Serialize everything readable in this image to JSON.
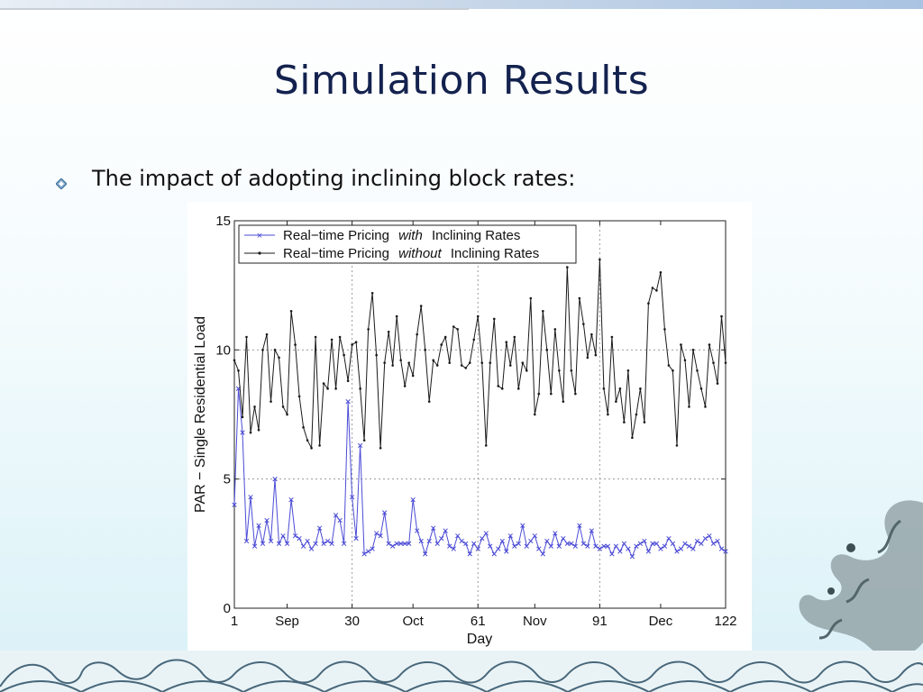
{
  "slide": {
    "title": "Simulation Results",
    "bullet": "The impact of adopting inclining block rates:"
  },
  "colors": {
    "title": "#13224e",
    "with_series": "#4b4bd6",
    "without_series": "#1a1a1a",
    "grid": "#9a9a9a"
  },
  "chart_data": {
    "type": "line",
    "title": "",
    "xlabel": "Day",
    "ylabel": "PAR − Single Residential Load",
    "xlim": [
      1,
      122
    ],
    "ylim": [
      0,
      15
    ],
    "y_ticks": [
      0,
      5,
      10,
      15
    ],
    "x_ticks": [
      {
        "value": 1,
        "label": "1"
      },
      {
        "value": 14,
        "label": "Sep"
      },
      {
        "value": 30,
        "label": "30"
      },
      {
        "value": 45,
        "label": "Oct"
      },
      {
        "value": 61,
        "label": "61"
      },
      {
        "value": 75,
        "label": "Nov"
      },
      {
        "value": 91,
        "label": "91"
      },
      {
        "value": 106,
        "label": "Dec"
      },
      {
        "value": 122,
        "label": "122"
      }
    ],
    "x_grid": [
      30,
      61,
      91
    ],
    "y_grid": [
      5,
      10
    ],
    "grid": true,
    "legend_position": "top-left",
    "series": [
      {
        "name": "Real−time Pricing with Inclining Rates",
        "name_plain": "Real−time Pricing",
        "name_italic": "with",
        "name_tail": "Inclining Rates",
        "marker": "x",
        "color": "#4b4bd6",
        "values": [
          4.0,
          8.5,
          6.8,
          2.6,
          4.3,
          2.4,
          3.2,
          2.5,
          3.4,
          2.6,
          5.0,
          2.5,
          2.8,
          2.5,
          4.2,
          2.8,
          2.7,
          2.4,
          2.6,
          2.3,
          2.5,
          3.1,
          2.5,
          2.6,
          2.5,
          3.6,
          3.4,
          2.5,
          8.0,
          4.3,
          2.7,
          6.3,
          2.1,
          2.2,
          2.3,
          2.9,
          2.8,
          3.7,
          2.5,
          2.4,
          2.5,
          2.5,
          2.5,
          2.5,
          4.2,
          3.0,
          2.6,
          2.1,
          2.6,
          3.1,
          2.5,
          2.7,
          3.0,
          2.4,
          2.3,
          2.8,
          2.6,
          2.5,
          2.1,
          2.5,
          2.3,
          2.7,
          2.9,
          2.4,
          2.1,
          2.3,
          2.6,
          2.2,
          2.8,
          2.4,
          2.5,
          3.2,
          2.4,
          2.6,
          2.8,
          2.3,
          2.1,
          2.6,
          2.4,
          2.9,
          2.4,
          2.7,
          2.5,
          2.5,
          2.4,
          3.2,
          2.5,
          2.4,
          3.0,
          2.4,
          2.3,
          2.4,
          2.4,
          2.1,
          2.4,
          2.2,
          2.5,
          2.3,
          2.0,
          2.4,
          2.5,
          2.6,
          2.2,
          2.5,
          2.5,
          2.3,
          2.4,
          2.7,
          2.5,
          2.2,
          2.3,
          2.5,
          2.4,
          2.3,
          2.6,
          2.5,
          2.7,
          2.8,
          2.5,
          2.6,
          2.3,
          2.2
        ]
      },
      {
        "name": "Real−time Pricing without Inclining Rates",
        "name_plain": "Real−time Pricing",
        "name_italic": "without",
        "name_tail": "Inclining Rates",
        "marker": "dot",
        "color": "#1a1a1a",
        "values": [
          9.6,
          9.2,
          7.4,
          10.5,
          6.8,
          7.8,
          6.9,
          10.0,
          10.6,
          8.0,
          10.0,
          9.7,
          7.8,
          7.5,
          11.5,
          10.2,
          8.2,
          7.0,
          6.5,
          6.2,
          10.5,
          6.3,
          8.7,
          8.5,
          10.4,
          8.5,
          10.5,
          9.8,
          8.8,
          10.2,
          10.3,
          8.5,
          6.5,
          10.8,
          12.2,
          9.8,
          6.2,
          9.5,
          10.7,
          9.4,
          11.3,
          9.6,
          8.6,
          9.5,
          9.0,
          10.6,
          11.7,
          10.0,
          8.0,
          9.6,
          9.4,
          10.2,
          10.5,
          9.5,
          10.9,
          10.8,
          9.4,
          9.3,
          9.5,
          10.4,
          11.3,
          9.5,
          6.3,
          9.5,
          11.2,
          8.6,
          8.5,
          10.3,
          9.4,
          10.5,
          8.5,
          9.5,
          9.2,
          12.0,
          7.5,
          8.3,
          11.5,
          10.0,
          8.3,
          10.8,
          9.2,
          8.0,
          13.2,
          9.2,
          8.3,
          12.0,
          11.0,
          9.7,
          10.6,
          9.8,
          13.5,
          8.5,
          7.5,
          10.5,
          8.0,
          8.5,
          7.2,
          9.2,
          6.6,
          7.5,
          8.5,
          7.2,
          11.8,
          12.4,
          12.3,
          13.0,
          10.8,
          9.4,
          9.2,
          6.3,
          10.2,
          9.6,
          7.8,
          10.0,
          9.2,
          8.5,
          7.8,
          10.2,
          9.5,
          8.7,
          11.3,
          9.5
        ]
      }
    ]
  }
}
